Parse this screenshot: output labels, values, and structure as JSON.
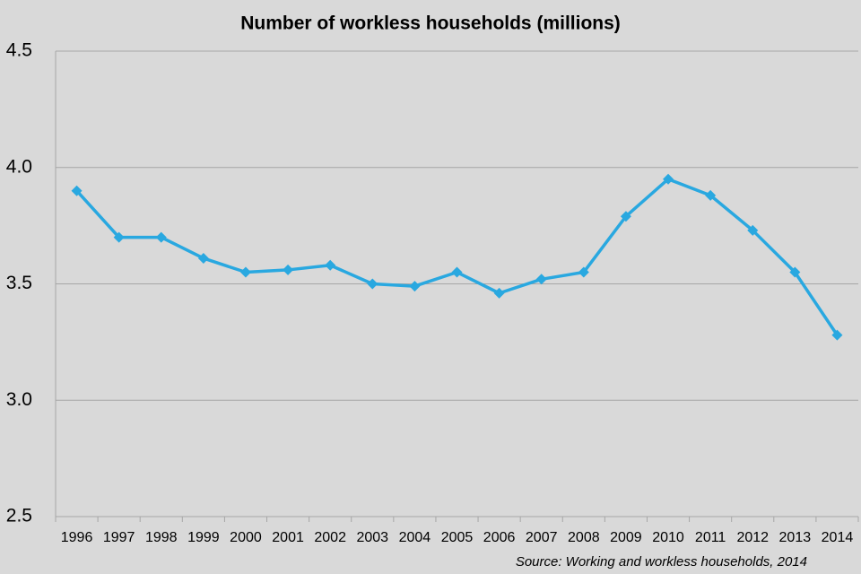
{
  "chart_data": {
    "type": "line",
    "title": "Number of workless households (millions)",
    "source": "Source: Working and workless households, 2014",
    "categories": [
      "1996",
      "1997",
      "1998",
      "1999",
      "2000",
      "2001",
      "2002",
      "2003",
      "2004",
      "2005",
      "2006",
      "2007",
      "2008",
      "2009",
      "2010",
      "2011",
      "2012",
      "2013",
      "2014"
    ],
    "series": [
      {
        "name": "Workless households",
        "color": "#29a8e0",
        "values": [
          3.9,
          3.7,
          3.7,
          3.61,
          3.55,
          3.56,
          3.58,
          3.5,
          3.49,
          3.55,
          3.46,
          3.52,
          3.55,
          3.79,
          3.95,
          3.88,
          3.73,
          3.55,
          3.28
        ]
      }
    ],
    "ylim": [
      2.5,
      4.5
    ],
    "yticks": [
      2.5,
      {
        "value": 3,
        "label": "3.0"
      },
      3.5,
      {
        "value": 4,
        "label": "4.0"
      },
      4.5
    ],
    "grid": true
  }
}
